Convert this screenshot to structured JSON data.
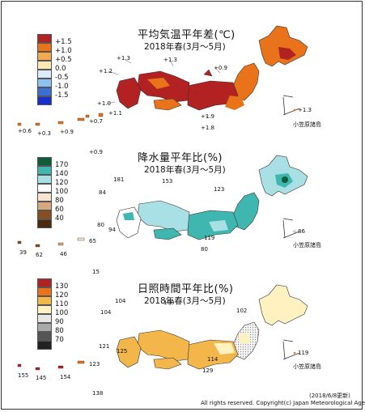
{
  "panels": [
    {
      "title": "平均気温平年差(℃)",
      "subtitle": "2018年春(3月～5月)",
      "legend": [
        {
          "label": "+1.5",
          "color": "#b22222"
        },
        {
          "label": "+1.0",
          "color": "#e8731a"
        },
        {
          "label": "+0.5",
          "color": "#f4a850"
        },
        {
          "label": "0.0",
          "color": "#ffe9b0"
        },
        {
          "label": "-0.5",
          "color": "#d9ecfa"
        },
        {
          "label": "-1.0",
          "color": "#8fc3ef"
        },
        {
          "label": "-1.5",
          "color": "#3b6fd6"
        }
      ],
      "labels": {
        "a": "+1.3",
        "b": "+1.3",
        "c": "+0.9",
        "d": "+1.2",
        "e": "+1.0",
        "f": "+1.1",
        "g": "+1.9",
        "h": "+1.8",
        "i": "+0.6",
        "j": "+0.3",
        "k": "+0.9",
        "l": "+0.7",
        "m": "+1.3"
      },
      "islands_label": "小笠原諸島"
    },
    {
      "title": "降水量平年比(%)",
      "subtitle": "2018年春(3月～5月)",
      "legend": [
        {
          "label": "170",
          "color": "#0d5c3a"
        },
        {
          "label": "140",
          "color": "#3fb6b0"
        },
        {
          "label": "120",
          "color": "#a8e0e6"
        },
        {
          "label": "100",
          "color": "#ffffff"
        },
        {
          "label": "80",
          "color": "#fbe3cf"
        },
        {
          "label": "60",
          "color": "#d9a77e"
        },
        {
          "label": "40",
          "color": "#8a4e1e"
        }
      ],
      "labels": {
        "a": "+0.9",
        "b": "181",
        "c": "153",
        "d": "84",
        "e": "123",
        "f": "80",
        "g": "94",
        "h": "119",
        "i": "80",
        "j": "39",
        "k": "62",
        "l": "46",
        "m": "65",
        "n": "86"
      },
      "islands_label": "小笠原諸島"
    },
    {
      "title": "日照時間平年比(%)",
      "subtitle": "2018年春(3月～5月)",
      "legend": [
        {
          "label": "130",
          "color": "#b22222"
        },
        {
          "label": "120",
          "color": "#e8731a"
        },
        {
          "label": "110",
          "color": "#f3b64a"
        },
        {
          "label": "100",
          "color": "#fff2c0"
        },
        {
          "label": "90",
          "color": "#e6e6e6"
        },
        {
          "label": "80",
          "color": "#a9a9a9"
        },
        {
          "label": "70",
          "color": "#555555"
        }
      ],
      "labels": {
        "a": "15",
        "b": "104",
        "c": "108",
        "d": "104",
        "e": "102",
        "f": "121",
        "g": "125",
        "h": "114",
        "i": "129",
        "j": "155",
        "k": "145",
        "l": "154",
        "m": "123",
        "n": "119",
        "o": "138"
      },
      "islands_label": "小笠原諸島"
    }
  ],
  "footer": {
    "date": "(2018/6/8更新)",
    "copyright": "All rights reserved. Copyright(c) Japan Meteorological Agency"
  }
}
